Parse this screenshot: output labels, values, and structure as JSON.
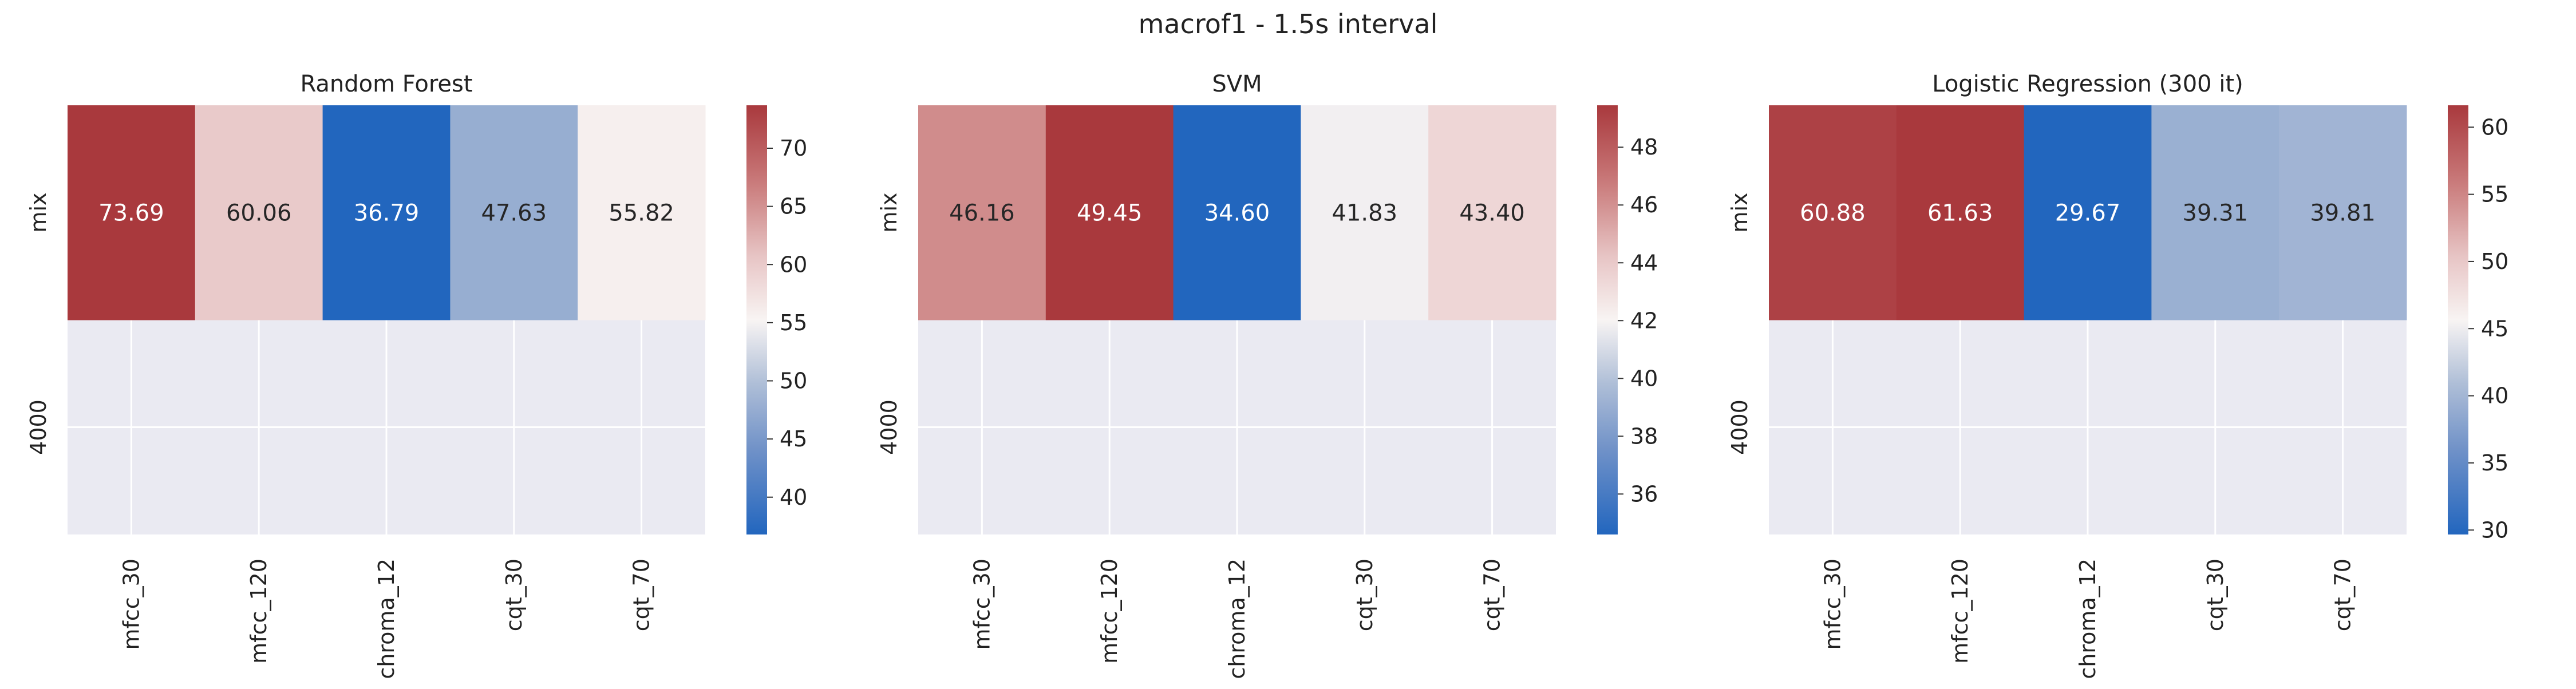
{
  "figure": {
    "title": "macrof1 - 1.5s interval"
  },
  "chart_data": [
    {
      "type": "heatmap",
      "title": "Random Forest",
      "x_categories": [
        "mfcc_30",
        "mfcc_120",
        "chroma_12",
        "cqt_30",
        "cqt_70"
      ],
      "y_categories": [
        "mix",
        "4000"
      ],
      "values": [
        [
          73.69,
          60.06,
          36.79,
          47.63,
          55.82
        ],
        [
          null,
          null,
          null,
          null,
          null
        ]
      ],
      "colorbar": {
        "range": [
          36.79,
          73.69
        ],
        "ticks": [
          40,
          45,
          50,
          55,
          60,
          65,
          70
        ]
      },
      "colormap": "vlag",
      "missing_color": "#eaeaf2",
      "grid": true
    },
    {
      "type": "heatmap",
      "title": "SVM",
      "x_categories": [
        "mfcc_30",
        "mfcc_120",
        "chroma_12",
        "cqt_30",
        "cqt_70"
      ],
      "y_categories": [
        "mix",
        "4000"
      ],
      "values": [
        [
          46.16,
          49.45,
          34.6,
          41.83,
          43.4
        ],
        [
          null,
          null,
          null,
          null,
          null
        ]
      ],
      "colorbar": {
        "range": [
          34.6,
          49.45
        ],
        "ticks": [
          36,
          38,
          40,
          42,
          44,
          46,
          48
        ]
      },
      "colormap": "vlag",
      "missing_color": "#eaeaf2",
      "grid": true
    },
    {
      "type": "heatmap",
      "title": "Logistic Regression (300 it)",
      "x_categories": [
        "mfcc_30",
        "mfcc_120",
        "chroma_12",
        "cqt_30",
        "cqt_70"
      ],
      "y_categories": [
        "mix",
        "4000"
      ],
      "values": [
        [
          60.88,
          61.63,
          29.67,
          39.31,
          39.81
        ],
        [
          null,
          null,
          null,
          null,
          null
        ]
      ],
      "colorbar": {
        "range": [
          29.67,
          61.63
        ],
        "ticks": [
          30,
          35,
          40,
          45,
          50,
          55,
          60
        ]
      },
      "colormap": "vlag",
      "missing_color": "#eaeaf2",
      "grid": true
    }
  ]
}
